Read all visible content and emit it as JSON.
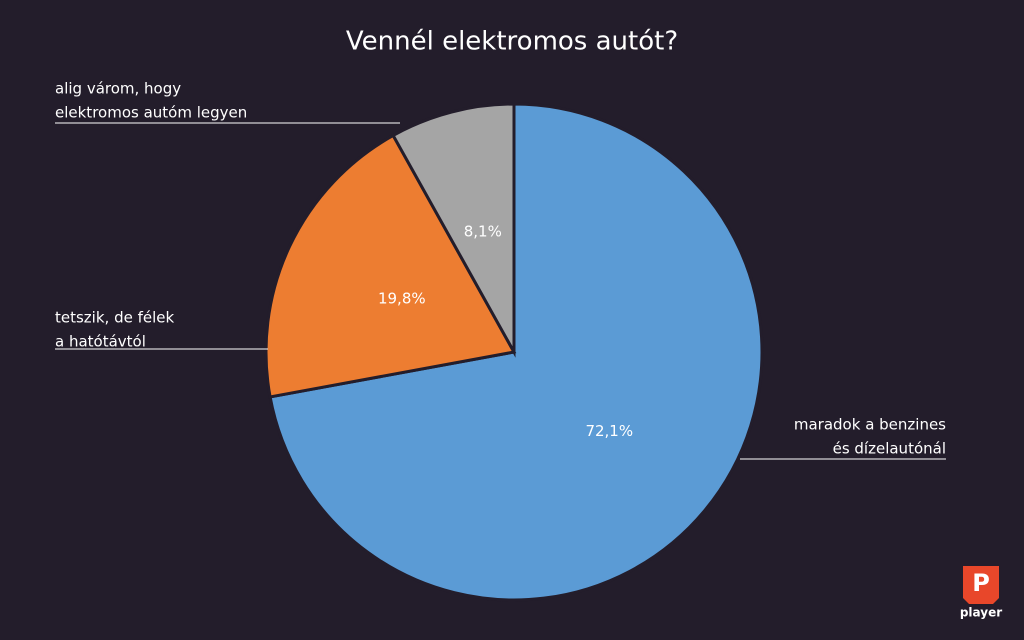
{
  "chart_data": {
    "type": "pie",
    "title": "Vennél elektromos autót?",
    "categories": [
      [
        "maradok a benzines",
        "és dízelautónál"
      ],
      [
        "tetszik, de félek",
        "a hatótávtól"
      ],
      [
        "alig várom, hogy",
        "elektromos autóm legyen"
      ]
    ],
    "values": [
      72.1,
      19.8,
      8.1
    ],
    "value_labels": [
      "72,1%",
      "19,8%",
      "8,1%"
    ],
    "colors": [
      "#5b9bd5",
      "#ed7d31",
      "#a5a5a5"
    ]
  },
  "logo": {
    "letter": "P",
    "text": "player"
  }
}
